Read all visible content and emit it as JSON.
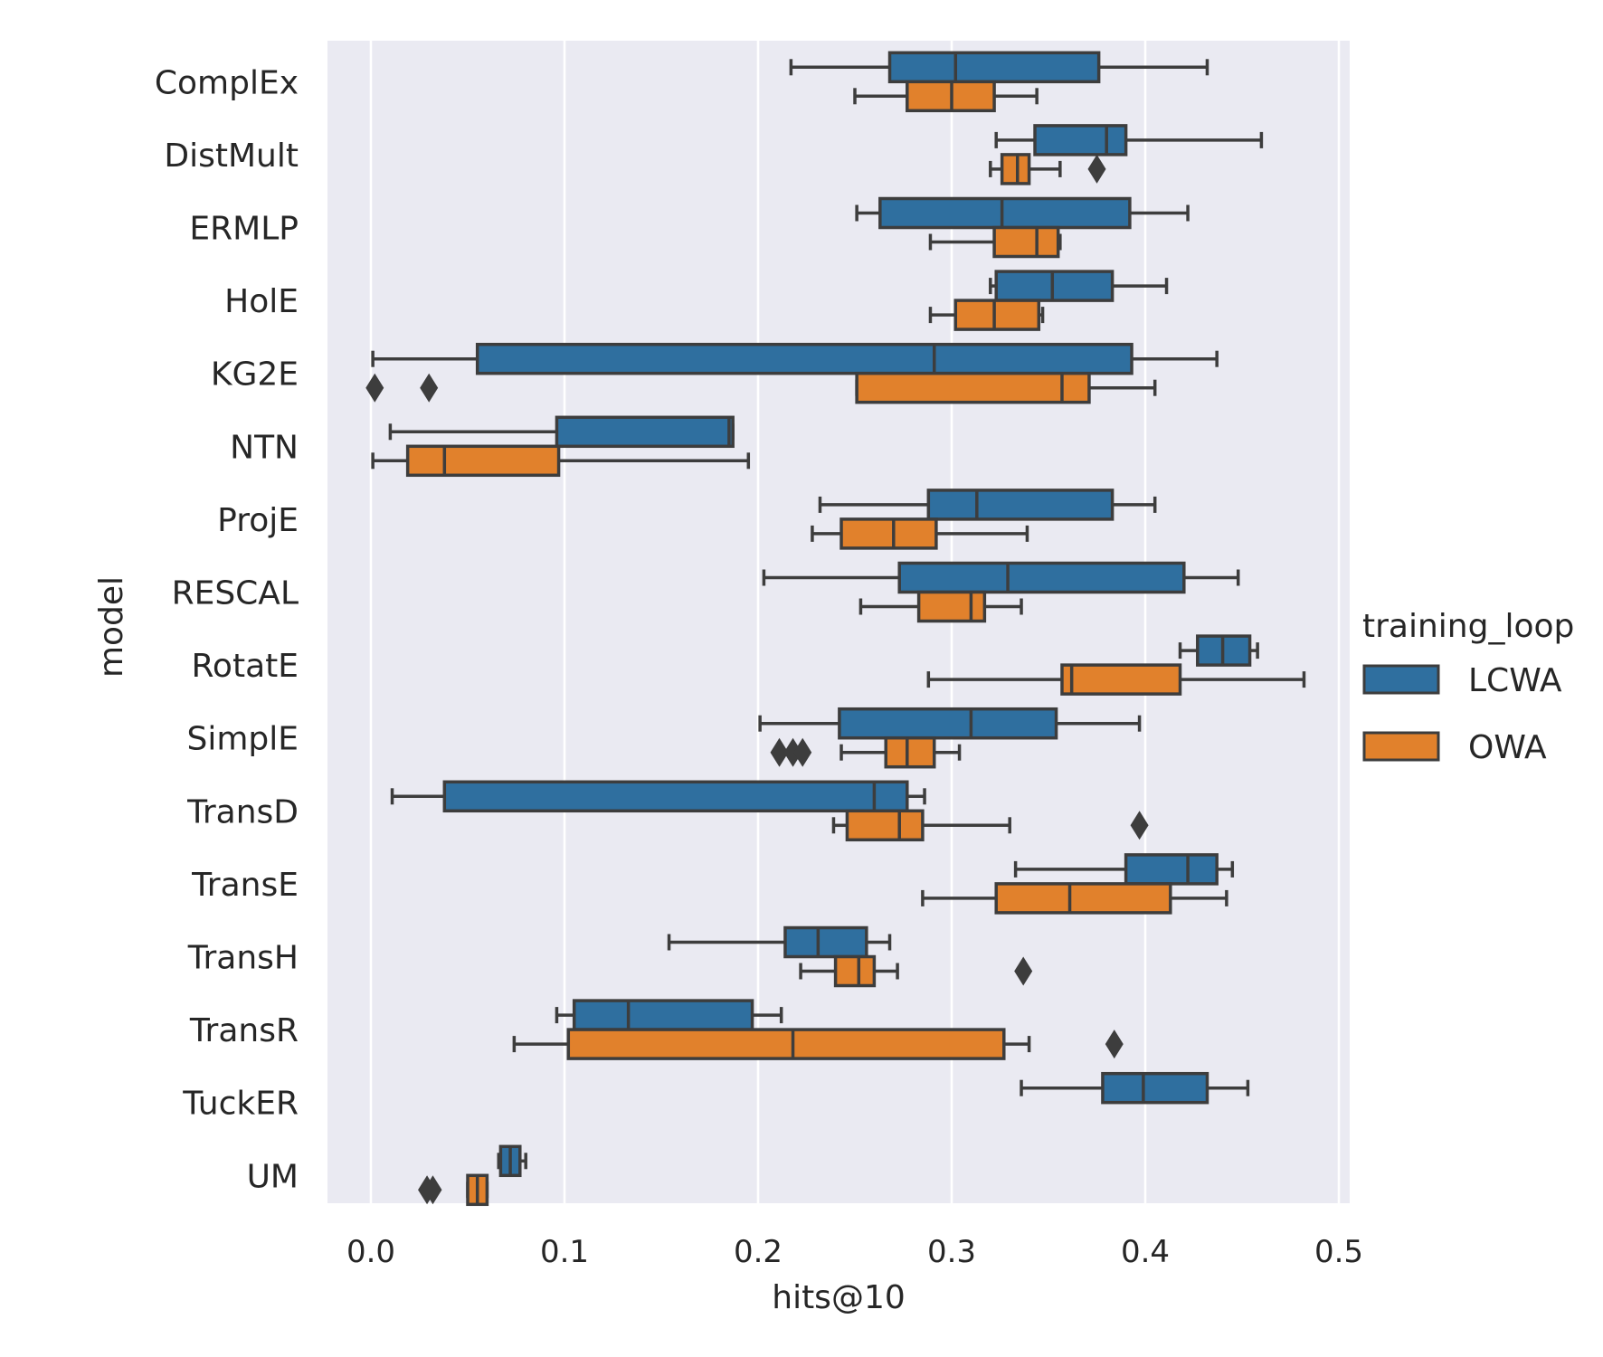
{
  "chart_data": {
    "type": "boxplot",
    "orientation": "horizontal",
    "xlabel": "hits@10",
    "ylabel": "model",
    "xlim": [
      -0.023,
      0.503
    ],
    "xticks": [
      0.0,
      0.1,
      0.2,
      0.3,
      0.4,
      0.5
    ],
    "xtick_labels": [
      "0.0",
      "0.1",
      "0.2",
      "0.3",
      "0.4",
      "0.5"
    ],
    "grid": true,
    "legend": {
      "title": "training_loop",
      "placement": "right",
      "entries": [
        {
          "name": "LCWA",
          "color": "#2f6f9f"
        },
        {
          "name": "OWA",
          "color": "#e1812c"
        }
      ]
    },
    "background_color": "#eaeaf2",
    "categories": [
      "ComplEx",
      "DistMult",
      "ERMLP",
      "HolE",
      "KG2E",
      "NTN",
      "ProjE",
      "RESCAL",
      "RotatE",
      "SimplE",
      "TransD",
      "TransE",
      "TransH",
      "TransR",
      "TuckER",
      "UM"
    ],
    "series": [
      {
        "name": "LCWA",
        "boxes": [
          {
            "category": "ComplEx",
            "whislo": 0.217,
            "q1": 0.268,
            "med": 0.302,
            "q3": 0.376,
            "whishi": 0.432,
            "fliers": []
          },
          {
            "category": "DistMult",
            "whislo": 0.323,
            "q1": 0.343,
            "med": 0.38,
            "q3": 0.39,
            "whishi": 0.46,
            "fliers": []
          },
          {
            "category": "ERMLP",
            "whislo": 0.251,
            "q1": 0.263,
            "med": 0.326,
            "q3": 0.392,
            "whishi": 0.422,
            "fliers": []
          },
          {
            "category": "HolE",
            "whislo": 0.32,
            "q1": 0.323,
            "med": 0.352,
            "q3": 0.383,
            "whishi": 0.411,
            "fliers": []
          },
          {
            "category": "KG2E",
            "whislo": 0.001,
            "q1": 0.055,
            "med": 0.291,
            "q3": 0.393,
            "whishi": 0.437,
            "fliers": []
          },
          {
            "category": "NTN",
            "whislo": 0.01,
            "q1": 0.096,
            "med": 0.185,
            "q3": 0.187,
            "whishi": 0.187,
            "fliers": []
          },
          {
            "category": "ProjE",
            "whislo": 0.232,
            "q1": 0.288,
            "med": 0.313,
            "q3": 0.383,
            "whishi": 0.405,
            "fliers": []
          },
          {
            "category": "RESCAL",
            "whislo": 0.203,
            "q1": 0.273,
            "med": 0.329,
            "q3": 0.42,
            "whishi": 0.448,
            "fliers": []
          },
          {
            "category": "RotatE",
            "whislo": 0.418,
            "q1": 0.427,
            "med": 0.44,
            "q3": 0.454,
            "whishi": 0.458,
            "fliers": []
          },
          {
            "category": "SimplE",
            "whislo": 0.201,
            "q1": 0.242,
            "med": 0.31,
            "q3": 0.354,
            "whishi": 0.397,
            "fliers": []
          },
          {
            "category": "TransD",
            "whislo": 0.011,
            "q1": 0.038,
            "med": 0.26,
            "q3": 0.277,
            "whishi": 0.286,
            "fliers": []
          },
          {
            "category": "TransE",
            "whislo": 0.333,
            "q1": 0.39,
            "med": 0.422,
            "q3": 0.437,
            "whishi": 0.445,
            "fliers": []
          },
          {
            "category": "TransH",
            "whislo": 0.154,
            "q1": 0.214,
            "med": 0.231,
            "q3": 0.256,
            "whishi": 0.268,
            "fliers": []
          },
          {
            "category": "TransR",
            "whislo": 0.096,
            "q1": 0.105,
            "med": 0.133,
            "q3": 0.197,
            "whishi": 0.212,
            "fliers": []
          },
          {
            "category": "TuckER",
            "whislo": 0.336,
            "q1": 0.378,
            "med": 0.399,
            "q3": 0.432,
            "whishi": 0.453,
            "fliers": []
          },
          {
            "category": "UM",
            "whislo": 0.066,
            "q1": 0.067,
            "med": 0.072,
            "q3": 0.077,
            "whishi": 0.08,
            "fliers": []
          }
        ]
      },
      {
        "name": "OWA",
        "boxes": [
          {
            "category": "ComplEx",
            "whislo": 0.25,
            "q1": 0.277,
            "med": 0.3,
            "q3": 0.322,
            "whishi": 0.344,
            "fliers": []
          },
          {
            "category": "DistMult",
            "whislo": 0.32,
            "q1": 0.326,
            "med": 0.334,
            "q3": 0.34,
            "whishi": 0.356,
            "fliers": [
              0.375
            ]
          },
          {
            "category": "ERMLP",
            "whislo": 0.289,
            "q1": 0.322,
            "med": 0.344,
            "q3": 0.355,
            "whishi": 0.356,
            "fliers": []
          },
          {
            "category": "HolE",
            "whislo": 0.289,
            "q1": 0.302,
            "med": 0.322,
            "q3": 0.345,
            "whishi": 0.347,
            "fliers": []
          },
          {
            "category": "KG2E",
            "whislo": 0.251,
            "q1": 0.251,
            "med": 0.357,
            "q3": 0.371,
            "whishi": 0.405,
            "fliers": [
              0.002,
              0.03
            ]
          },
          {
            "category": "NTN",
            "whislo": 0.001,
            "q1": 0.019,
            "med": 0.038,
            "q3": 0.097,
            "whishi": 0.195,
            "fliers": []
          },
          {
            "category": "ProjE",
            "whislo": 0.228,
            "q1": 0.243,
            "med": 0.27,
            "q3": 0.292,
            "whishi": 0.339,
            "fliers": []
          },
          {
            "category": "RESCAL",
            "whislo": 0.253,
            "q1": 0.283,
            "med": 0.31,
            "q3": 0.317,
            "whishi": 0.336,
            "fliers": []
          },
          {
            "category": "RotatE",
            "whislo": 0.288,
            "q1": 0.357,
            "med": 0.362,
            "q3": 0.418,
            "whishi": 0.482,
            "fliers": []
          },
          {
            "category": "SimplE",
            "whislo": 0.243,
            "q1": 0.266,
            "med": 0.277,
            "q3": 0.291,
            "whishi": 0.304,
            "fliers": [
              0.211,
              0.218,
              0.223
            ]
          },
          {
            "category": "TransD",
            "whislo": 0.239,
            "q1": 0.246,
            "med": 0.273,
            "q3": 0.285,
            "whishi": 0.33,
            "fliers": [
              0.397
            ]
          },
          {
            "category": "TransE",
            "whislo": 0.285,
            "q1": 0.323,
            "med": 0.361,
            "q3": 0.413,
            "whishi": 0.442,
            "fliers": []
          },
          {
            "category": "TransH",
            "whislo": 0.222,
            "q1": 0.24,
            "med": 0.252,
            "q3": 0.26,
            "whishi": 0.272,
            "fliers": [
              0.337
            ]
          },
          {
            "category": "TransR",
            "whislo": 0.074,
            "q1": 0.102,
            "med": 0.218,
            "q3": 0.327,
            "whishi": 0.34,
            "fliers": [
              0.384
            ]
          },
          {
            "category": "UM",
            "whislo": 0.05,
            "q1": 0.05,
            "med": 0.055,
            "q3": 0.06,
            "whishi": 0.06,
            "fliers": [
              0.029,
              0.032
            ]
          }
        ]
      }
    ]
  }
}
